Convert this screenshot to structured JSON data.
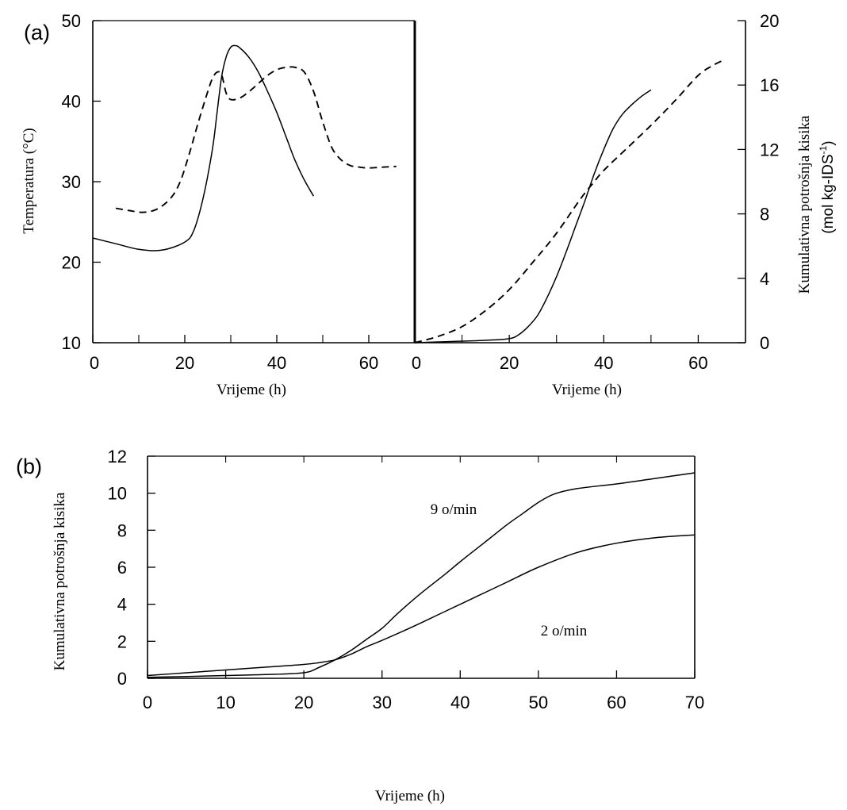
{
  "panel_a": {
    "label": "(a)",
    "left_plot": {
      "xlabel": "Vrijeme (h)",
      "ylabel": "Temperatura (°C)"
    },
    "right_plot": {
      "xlabel": "Vrijeme (h)",
      "ylabel_line1": "Kumulativna potrošnja kisika",
      "ylabel_line2": "(mol kg-IDS",
      "ylabel_sup": "-1",
      "ylabel_close": ")"
    }
  },
  "panel_b": {
    "label": "(b)",
    "xlabel": "Vrijeme (h)",
    "ylabel": "Kumulativna potrošnja kisika",
    "annotation_9": "9 o/min",
    "annotation_2": "2 o/min"
  },
  "chart_data": [
    {
      "type": "line",
      "panel": "a-left",
      "xlabel": "Vrijeme (h)",
      "ylabel": "Temperatura (°C)",
      "xlim": [
        0,
        70
      ],
      "ylim": [
        10,
        50
      ],
      "xticks": [
        0,
        20,
        40,
        60
      ],
      "yticks": [
        10,
        20,
        30,
        40,
        50
      ],
      "series": [
        {
          "style": "solid",
          "x": [
            0,
            5,
            10,
            15,
            20,
            22,
            24,
            26,
            27,
            28,
            29,
            30,
            31,
            32,
            34,
            36,
            38,
            40,
            42,
            44,
            46,
            48
          ],
          "y": [
            23,
            22.3,
            21.6,
            21.5,
            22.5,
            24,
            28,
            34,
            38.5,
            43,
            45.5,
            46.7,
            46.9,
            46.6,
            45.4,
            43.6,
            41.2,
            38.6,
            35.6,
            32.6,
            30.2,
            28.2
          ]
        },
        {
          "style": "dashed",
          "x": [
            5,
            8,
            11,
            14,
            17,
            19,
            21,
            23,
            25,
            26,
            27,
            28,
            29,
            30,
            32,
            34,
            36,
            38,
            40,
            42,
            44,
            46,
            48,
            50,
            52,
            54,
            56,
            58,
            60,
            63,
            66
          ],
          "y": [
            26.7,
            26.4,
            26.2,
            26.6,
            28,
            30,
            33.5,
            37.5,
            41.2,
            42.8,
            43.6,
            43.3,
            41,
            40.2,
            40.4,
            41.2,
            42.2,
            43.2,
            43.9,
            44.2,
            44.2,
            43.6,
            41.2,
            37.4,
            34.2,
            32.7,
            32,
            31.8,
            31.7,
            31.8,
            31.9
          ]
        }
      ]
    },
    {
      "type": "line",
      "panel": "a-right",
      "xlabel": "Vrijeme (h)",
      "ylabel": "Kumulativna potrošnja kisika (mol kg-IDS-1)",
      "xlim": [
        0,
        70
      ],
      "ylim": [
        0,
        20
      ],
      "xticks": [
        0,
        20,
        40,
        60
      ],
      "yticks": [
        0,
        4,
        8,
        12,
        16,
        20
      ],
      "series": [
        {
          "style": "solid",
          "x": [
            0,
            5,
            10,
            15,
            20,
            22,
            24,
            26,
            28,
            30,
            32,
            34,
            36,
            38,
            40,
            42,
            44,
            46,
            48,
            50
          ],
          "y": [
            0,
            0.05,
            0.1,
            0.15,
            0.25,
            0.5,
            1,
            1.7,
            2.8,
            4.1,
            5.6,
            7.2,
            8.8,
            10.5,
            12,
            13.3,
            14.2,
            14.8,
            15.3,
            15.7
          ]
        },
        {
          "style": "dashed",
          "x": [
            0,
            5,
            10,
            15,
            20,
            25,
            30,
            35,
            38,
            40,
            45,
            50,
            55,
            60,
            63,
            65
          ],
          "y": [
            0,
            0.4,
            1,
            2,
            3.3,
            5,
            6.8,
            8.9,
            10,
            10.7,
            12.1,
            13.5,
            15,
            16.6,
            17.2,
            17.5
          ]
        }
      ]
    },
    {
      "type": "line",
      "panel": "b",
      "xlabel": "Vrijeme (h)",
      "ylabel": "Kumulativna potrošnja kisika",
      "xlim": [
        0,
        70
      ],
      "ylim": [
        0,
        12
      ],
      "xticks": [
        0,
        10,
        20,
        30,
        40,
        50,
        60,
        70
      ],
      "yticks": [
        0,
        2,
        4,
        6,
        8,
        10,
        12
      ],
      "series": [
        {
          "name": "9 o/min",
          "style": "solid",
          "x": [
            0,
            5,
            10,
            15,
            20,
            22,
            24,
            26,
            28,
            30,
            32,
            35,
            38,
            40,
            43,
            46,
            48,
            50,
            52,
            55,
            60,
            65,
            70
          ],
          "y": [
            0.05,
            0.1,
            0.15,
            0.2,
            0.3,
            0.6,
            1,
            1.5,
            2.1,
            2.7,
            3.5,
            4.6,
            5.6,
            6.3,
            7.3,
            8.3,
            8.9,
            9.5,
            9.95,
            10.25,
            10.5,
            10.8,
            11.1
          ]
        },
        {
          "name": "2 o/min",
          "style": "solid",
          "x": [
            0,
            5,
            10,
            15,
            20,
            22,
            24,
            26,
            28,
            30,
            34,
            38,
            42,
            46,
            50,
            55,
            60,
            65,
            70
          ],
          "y": [
            0.15,
            0.3,
            0.45,
            0.6,
            0.75,
            0.85,
            1,
            1.3,
            1.7,
            2.05,
            2.8,
            3.6,
            4.4,
            5.2,
            6,
            6.8,
            7.3,
            7.6,
            7.75
          ]
        }
      ]
    }
  ]
}
